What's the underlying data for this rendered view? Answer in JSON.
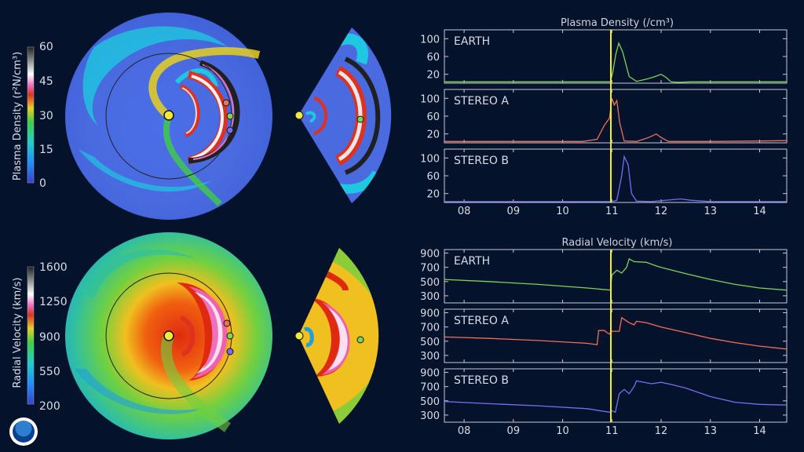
{
  "colorbars": {
    "density": {
      "title": "Plasma Density (r²N/cm³)",
      "ticks": [
        "60",
        "45",
        "30",
        "15",
        "0"
      ]
    },
    "velocity": {
      "title": "Radial Velocity (km/s)",
      "ticks": [
        "1600",
        "1250",
        "900",
        "550",
        "200"
      ]
    }
  },
  "colors": {
    "earth": "#7ed35a",
    "stereo_a": "#f0705a",
    "stereo_b": "#7a6cf0",
    "event_line": "#f4ea3b",
    "background": "#05122c"
  },
  "chart_data": [
    {
      "type": "line",
      "title": "Plasma Density (/cm³)",
      "xlabel": "",
      "ylabel": "",
      "x_ticks": [
        "08",
        "09",
        "10",
        "11",
        "12",
        "13",
        "14"
      ],
      "xlim": [
        7.6,
        14.55
      ],
      "event_marker_x": 10.98,
      "grid": false,
      "panels": [
        {
          "name": "EARTH",
          "color": "#7ed35a",
          "ylim": [
            0,
            120
          ],
          "yticks": [
            20,
            60,
            100
          ],
          "x": [
            7.6,
            9.0,
            10.5,
            10.97,
            11.02,
            11.08,
            11.14,
            11.22,
            11.35,
            11.5,
            11.7,
            11.85,
            12.0,
            12.1,
            12.2,
            12.35,
            12.6,
            13.5,
            14.55
          ],
          "y": [
            3,
            3,
            3,
            3,
            25,
            65,
            90,
            70,
            15,
            4,
            9,
            14,
            20,
            13,
            3,
            2,
            3,
            3,
            3
          ]
        },
        {
          "name": "STEREO A",
          "color": "#f0705a",
          "ylim": [
            0,
            120
          ],
          "yticks": [
            20,
            60,
            100
          ],
          "x": [
            7.6,
            9.0,
            10.4,
            10.7,
            10.85,
            10.95,
            11.0,
            11.05,
            11.1,
            11.16,
            11.25,
            11.5,
            11.75,
            11.9,
            12.0,
            12.15,
            12.4,
            13.0,
            14.0,
            14.55
          ],
          "y": [
            3,
            3,
            3,
            8,
            40,
            55,
            100,
            85,
            95,
            45,
            4,
            3,
            12,
            20,
            12,
            3,
            3,
            3,
            4,
            5
          ]
        },
        {
          "name": "STEREO B",
          "color": "#7a6cf0",
          "ylim": [
            0,
            120
          ],
          "yticks": [
            20,
            60,
            100
          ],
          "x": [
            7.6,
            9.0,
            10.5,
            11.0,
            11.1,
            11.2,
            11.25,
            11.33,
            11.4,
            11.5,
            11.8,
            12.2,
            12.4,
            12.6,
            13.0,
            14.55
          ],
          "y": [
            2,
            2,
            2,
            2,
            5,
            60,
            103,
            85,
            20,
            3,
            2,
            6,
            8,
            5,
            2,
            2
          ]
        }
      ]
    },
    {
      "type": "line",
      "title": "Radial Velocity (km/s)",
      "xlabel": "",
      "ylabel": "",
      "x_ticks": [
        "08",
        "09",
        "10",
        "11",
        "12",
        "13",
        "14"
      ],
      "xlim": [
        7.6,
        14.55
      ],
      "event_marker_x": 10.98,
      "grid": false,
      "panels": [
        {
          "name": "EARTH",
          "color": "#7ed35a",
          "ylim": [
            200,
            950
          ],
          "yticks": [
            300,
            500,
            700,
            900
          ],
          "x": [
            7.6,
            8.5,
            9.5,
            10.5,
            10.97,
            11.0,
            11.1,
            11.2,
            11.3,
            11.35,
            11.45,
            11.7,
            11.9,
            12.0,
            12.5,
            13.0,
            13.5,
            14.0,
            14.55
          ],
          "y": [
            530,
            500,
            460,
            410,
            380,
            590,
            660,
            620,
            700,
            820,
            780,
            770,
            720,
            700,
            610,
            530,
            460,
            410,
            380
          ]
        },
        {
          "name": "STEREO A",
          "color": "#f0705a",
          "ylim": [
            200,
            950
          ],
          "yticks": [
            300,
            500,
            700,
            900
          ],
          "x": [
            7.6,
            8.5,
            9.5,
            10.5,
            10.7,
            10.73,
            10.85,
            10.9,
            10.95,
            11.0,
            11.15,
            11.2,
            11.35,
            11.45,
            11.5,
            11.7,
            12.0,
            12.5,
            13.0,
            13.5,
            14.0,
            14.55
          ],
          "y": [
            560,
            540,
            510,
            470,
            450,
            650,
            650,
            620,
            600,
            640,
            640,
            830,
            760,
            730,
            780,
            760,
            700,
            620,
            540,
            480,
            430,
            390
          ]
        },
        {
          "name": "STEREO B",
          "color": "#7a6cf0",
          "ylim": [
            200,
            950
          ],
          "yticks": [
            300,
            500,
            700,
            900
          ],
          "x": [
            7.6,
            8.5,
            9.5,
            10.5,
            10.95,
            11.0,
            11.07,
            11.15,
            11.25,
            11.35,
            11.45,
            11.5,
            11.8,
            12.0,
            12.2,
            12.5,
            13.0,
            13.5,
            14.0,
            14.55
          ],
          "y": [
            490,
            460,
            430,
            390,
            340,
            360,
            340,
            600,
            660,
            600,
            700,
            780,
            740,
            760,
            730,
            680,
            560,
            480,
            450,
            440
          ]
        }
      ]
    }
  ]
}
